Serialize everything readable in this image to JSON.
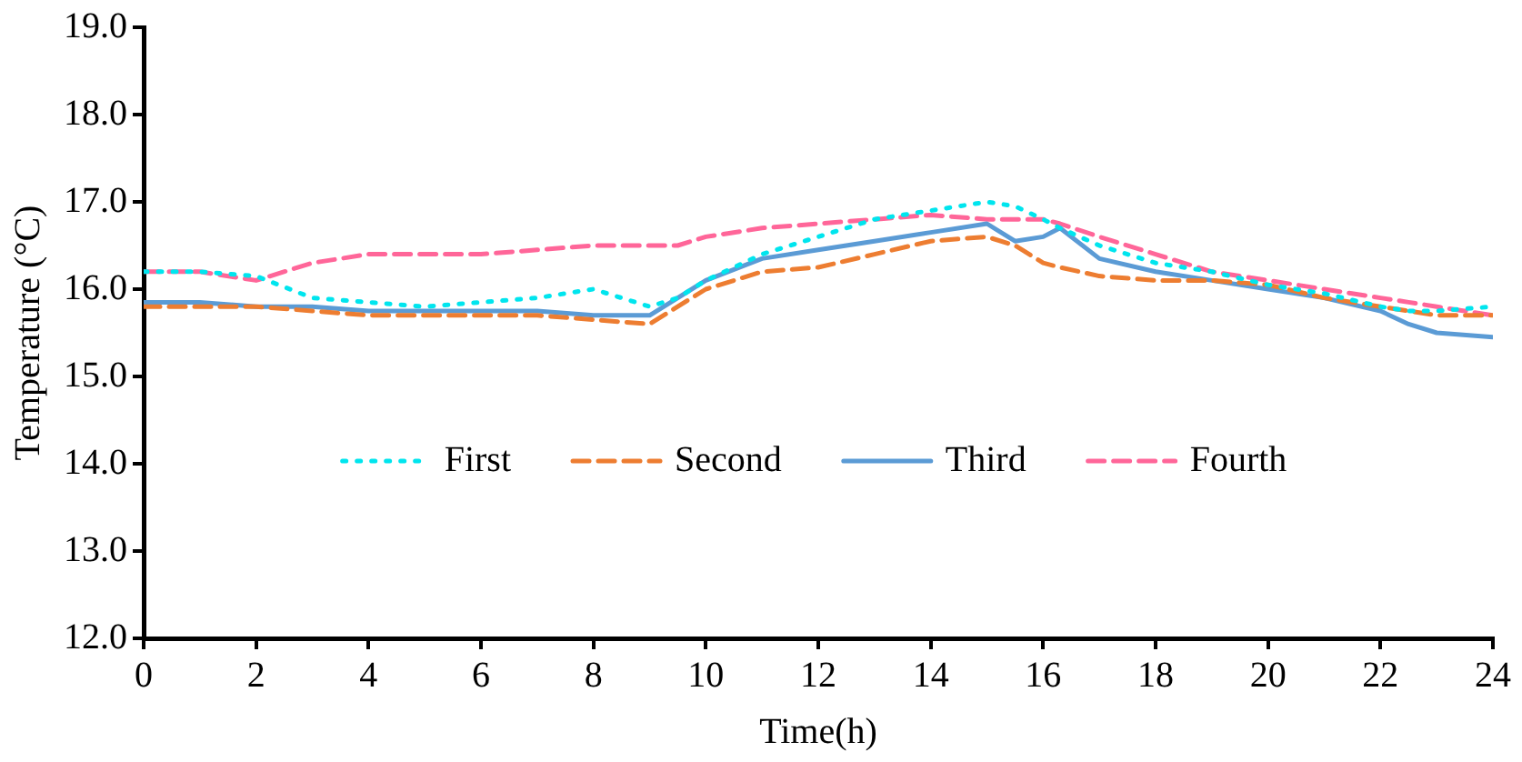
{
  "chart_data": {
    "type": "line",
    "xlabel": "Time(h)",
    "ylabel": "Temperature (°C)",
    "x": [
      0,
      1,
      2,
      3,
      4,
      5,
      6,
      7,
      8,
      9,
      9.5,
      10,
      11,
      12,
      13,
      14,
      15,
      15.5,
      16,
      16.3,
      17,
      18,
      19,
      20,
      21,
      22,
      22.5,
      23,
      24
    ],
    "xlim": [
      0,
      24
    ],
    "xticks": [
      0,
      2,
      4,
      6,
      8,
      10,
      12,
      14,
      16,
      18,
      20,
      22,
      24
    ],
    "ylim": [
      12,
      19
    ],
    "yticks": [
      {
        "value": 12,
        "label": "12.0"
      },
      {
        "value": 13,
        "label": "13.0"
      },
      {
        "value": 14,
        "label": "14.0"
      },
      {
        "value": 15,
        "label": "15.0"
      },
      {
        "value": 16,
        "label": "16.0"
      },
      {
        "value": 17,
        "label": "17.0"
      },
      {
        "value": 18,
        "label": "18.0"
      },
      {
        "value": 19,
        "label": "19.0"
      }
    ],
    "legend": "bottom",
    "marker": "none",
    "series": [
      {
        "name": "First",
        "color": "#00e5ee",
        "line_style": "dotted",
        "values": [
          16.2,
          16.2,
          16.15,
          15.9,
          15.85,
          15.8,
          15.85,
          15.9,
          16.0,
          15.8,
          15.9,
          16.1,
          16.4,
          16.6,
          16.8,
          16.9,
          17.0,
          16.95,
          16.8,
          16.7,
          16.5,
          16.3,
          16.2,
          16.05,
          15.95,
          15.8,
          15.75,
          15.75,
          15.8
        ]
      },
      {
        "name": "Second",
        "color": "#ed7d31",
        "line_style": "dashed",
        "values": [
          15.8,
          15.8,
          15.8,
          15.75,
          15.7,
          15.7,
          15.7,
          15.7,
          15.65,
          15.6,
          15.8,
          16.0,
          16.2,
          16.25,
          16.4,
          16.55,
          16.6,
          16.5,
          16.3,
          16.25,
          16.15,
          16.1,
          16.1,
          16.05,
          15.9,
          15.8,
          15.75,
          15.7,
          15.7
        ]
      },
      {
        "name": "Third",
        "color": "#5b9bd5",
        "line_style": "solid",
        "values": [
          15.85,
          15.85,
          15.8,
          15.8,
          15.75,
          15.75,
          15.75,
          15.75,
          15.7,
          15.7,
          15.9,
          16.1,
          16.35,
          16.45,
          16.55,
          16.65,
          16.75,
          16.55,
          16.6,
          16.7,
          16.35,
          16.2,
          16.1,
          16.0,
          15.9,
          15.75,
          15.6,
          15.5,
          15.45
        ]
      },
      {
        "name": "Fourth",
        "color": "#ff6699",
        "line_style": "dashed",
        "values": [
          16.2,
          16.2,
          16.1,
          16.3,
          16.4,
          16.4,
          16.4,
          16.45,
          16.5,
          16.5,
          16.5,
          16.6,
          16.7,
          16.75,
          16.8,
          16.85,
          16.8,
          16.8,
          16.8,
          16.75,
          16.6,
          16.4,
          16.2,
          16.1,
          16.0,
          15.9,
          15.85,
          15.8,
          15.7
        ]
      }
    ]
  }
}
